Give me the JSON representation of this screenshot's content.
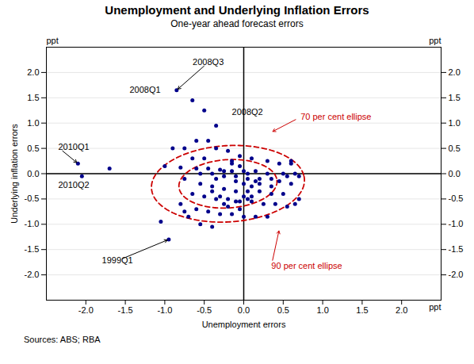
{
  "chart_data": {
    "type": "scatter",
    "title": "Unemployment and Underlying Inflation Errors",
    "subtitle": "One-year ahead forecast errors",
    "xlabel": "Unemployment errors",
    "ylabel": "Underlying inflation errors",
    "source": "Sources:  ABS; RBA",
    "xlim": [
      -2.5,
      2.5
    ],
    "ylim": [
      -2.5,
      2.5
    ],
    "xticks": [
      {
        "value": -2,
        "label": "-2.0"
      },
      -1.5,
      {
        "value": -1,
        "label": "-1.0"
      },
      -0.5,
      {
        "value": 0,
        "label": "0.0"
      },
      0.5,
      {
        "value": 1,
        "label": "1.0"
      },
      1.5,
      {
        "value": 2,
        "label": "2.0"
      }
    ],
    "yticks": [
      {
        "value": -2,
        "label": "-2.0"
      },
      -1.5,
      {
        "value": -1,
        "label": "-1.0"
      },
      -0.5,
      {
        "value": 0,
        "label": "0.0"
      },
      0.5,
      {
        "value": 1,
        "label": "1.0"
      },
      1.5,
      {
        "value": 2,
        "label": "2.0"
      }
    ],
    "y2lim": [
      -2.5,
      2.5
    ],
    "y2ticks": [
      {
        "value": -2,
        "label": "-2.0"
      },
      -1.5,
      {
        "value": -1,
        "label": "-1.0"
      },
      -0.5,
      {
        "value": 0,
        "label": "0.0"
      },
      0.5,
      {
        "value": 1,
        "label": "1.0"
      },
      1.5,
      {
        "value": 2,
        "label": "2.0"
      }
    ],
    "grid": "y",
    "color": "#00008B",
    "x": [
      -0.85,
      -0.65,
      -0.5,
      -0.35,
      -0.45,
      -0.6,
      -0.75,
      -0.9,
      -0.35,
      -0.2,
      -0.05,
      0.1,
      0.3,
      0.45,
      0.6,
      -1.0,
      -0.8,
      -0.6,
      -0.45,
      -0.3,
      -0.15,
      0.0,
      0.15,
      0.3,
      0.5,
      0.65,
      0.7,
      -0.55,
      -0.4,
      -0.25,
      -0.1,
      0.05,
      0.2,
      0.35,
      0.45,
      0.6,
      -0.75,
      -0.55,
      -0.4,
      -0.25,
      -0.1,
      0.05,
      0.2,
      0.35,
      0.5,
      -0.65,
      -0.5,
      -0.35,
      -0.2,
      -0.05,
      0.1,
      0.25,
      0.4,
      0.55,
      -0.8,
      -0.6,
      -0.45,
      -0.3,
      -0.15,
      0.0,
      0.15,
      0.3,
      -1.05,
      -0.55,
      -0.4,
      -2.1,
      -2.05,
      -0.95,
      -1.7,
      0.6,
      0.55,
      0.7,
      0.65,
      -0.15,
      -0.05,
      0.05,
      -0.35,
      -0.25,
      -0.15,
      -0.5,
      -0.65,
      0.2,
      0.1,
      0.35,
      -0.1,
      0.0,
      0.15,
      -0.4,
      -0.3,
      -0.2,
      0.0,
      0.1,
      -0.05,
      0.05,
      -0.1,
      -0.25,
      -0.75,
      -0.7
    ],
    "values": [
      1.65,
      1.45,
      1.25,
      0.95,
      0.65,
      0.65,
      0.5,
      0.5,
      0.5,
      0.45,
      0.35,
      0.3,
      0.25,
      0.2,
      0.2,
      0.15,
      0.12,
      0.1,
      0.1,
      0.08,
      0.05,
      0.05,
      0.05,
      0.0,
      0.0,
      0.0,
      -0.05,
      0.0,
      0.0,
      -0.05,
      -0.05,
      -0.1,
      -0.1,
      -0.1,
      -0.15,
      -0.2,
      -0.1,
      -0.2,
      -0.25,
      -0.3,
      -0.35,
      -0.35,
      -0.35,
      -0.4,
      -0.4,
      -0.4,
      -0.45,
      -0.5,
      -0.5,
      -0.55,
      -0.55,
      -0.6,
      -0.6,
      -0.65,
      -0.6,
      -0.7,
      -0.75,
      -0.8,
      -0.8,
      -0.85,
      -0.85,
      -0.85,
      -0.95,
      -1.0,
      -1.05,
      0.2,
      -0.05,
      -1.3,
      0.1,
      0.25,
      -0.05,
      -0.5,
      -0.6,
      0.2,
      0.15,
      0.0,
      -0.1,
      0.05,
      0.25,
      0.3,
      0.3,
      -0.2,
      -0.25,
      -0.25,
      -0.15,
      -0.2,
      -0.15,
      -0.35,
      -0.45,
      -0.65,
      -0.45,
      -0.45,
      -0.7,
      -0.5,
      -0.55,
      -0.6,
      -0.75,
      -0.85
    ],
    "ellipses": [
      {
        "cx": -0.2,
        "cy": -0.2,
        "width": 1.25,
        "height": 0.95,
        "angle": 10,
        "color": "#CC0000",
        "line_style": "dashed"
      },
      {
        "cx": -0.2,
        "cy": -0.2,
        "width": 1.95,
        "height": 1.5,
        "angle": 10,
        "color": "#CC0000",
        "line_style": "dashed"
      }
    ],
    "annotations": [
      {
        "type": "line",
        "x": 0
      },
      {
        "type": "line",
        "y": 0
      },
      {
        "type": "text",
        "text": "2008Q3",
        "x": -0.45,
        "y": 2.2,
        "align": "center",
        "arrow_to": [
          -0.85,
          1.65
        ]
      },
      {
        "type": "text",
        "text": "2008Q1",
        "x": -1.25,
        "y": 1.65,
        "align": "center"
      },
      {
        "type": "text",
        "text": "2008Q2",
        "x": -0.15,
        "y": 1.22,
        "align": "left"
      },
      {
        "type": "text",
        "text": "2010Q1",
        "x": -2.35,
        "y": 0.52,
        "align": "left",
        "arrow_to": [
          -2.1,
          0.2
        ]
      },
      {
        "type": "text",
        "text": "2010Q2",
        "x": -2.35,
        "y": -0.22,
        "align": "left"
      },
      {
        "type": "text",
        "text": "1999Q1",
        "x": -1.6,
        "y": -1.72,
        "align": "center",
        "arrow_to": [
          -0.95,
          -1.3
        ]
      },
      {
        "type": "text",
        "text": "70 per cent ellipse",
        "x": 0.72,
        "y": 1.12,
        "align": "left",
        "arrow_to": [
          0.35,
          0.82
        ],
        "color": "#CC0000"
      },
      {
        "type": "text",
        "text": "90 per cent ellipse",
        "x": 0.35,
        "y": -1.82,
        "align": "left",
        "arrow_to": [
          0.45,
          -1.1
        ],
        "color": "#CC0000"
      },
      {
        "type": "text",
        "text": "ppt",
        "x": -2.5,
        "y": 2.57,
        "align": "left"
      },
      {
        "type": "text",
        "text": "ppt",
        "x": 2.5,
        "y": 2.57,
        "align": "right"
      },
      {
        "type": "text",
        "text": "ppt",
        "x": 2.5,
        "y": -2.57,
        "align": "right"
      }
    ]
  }
}
